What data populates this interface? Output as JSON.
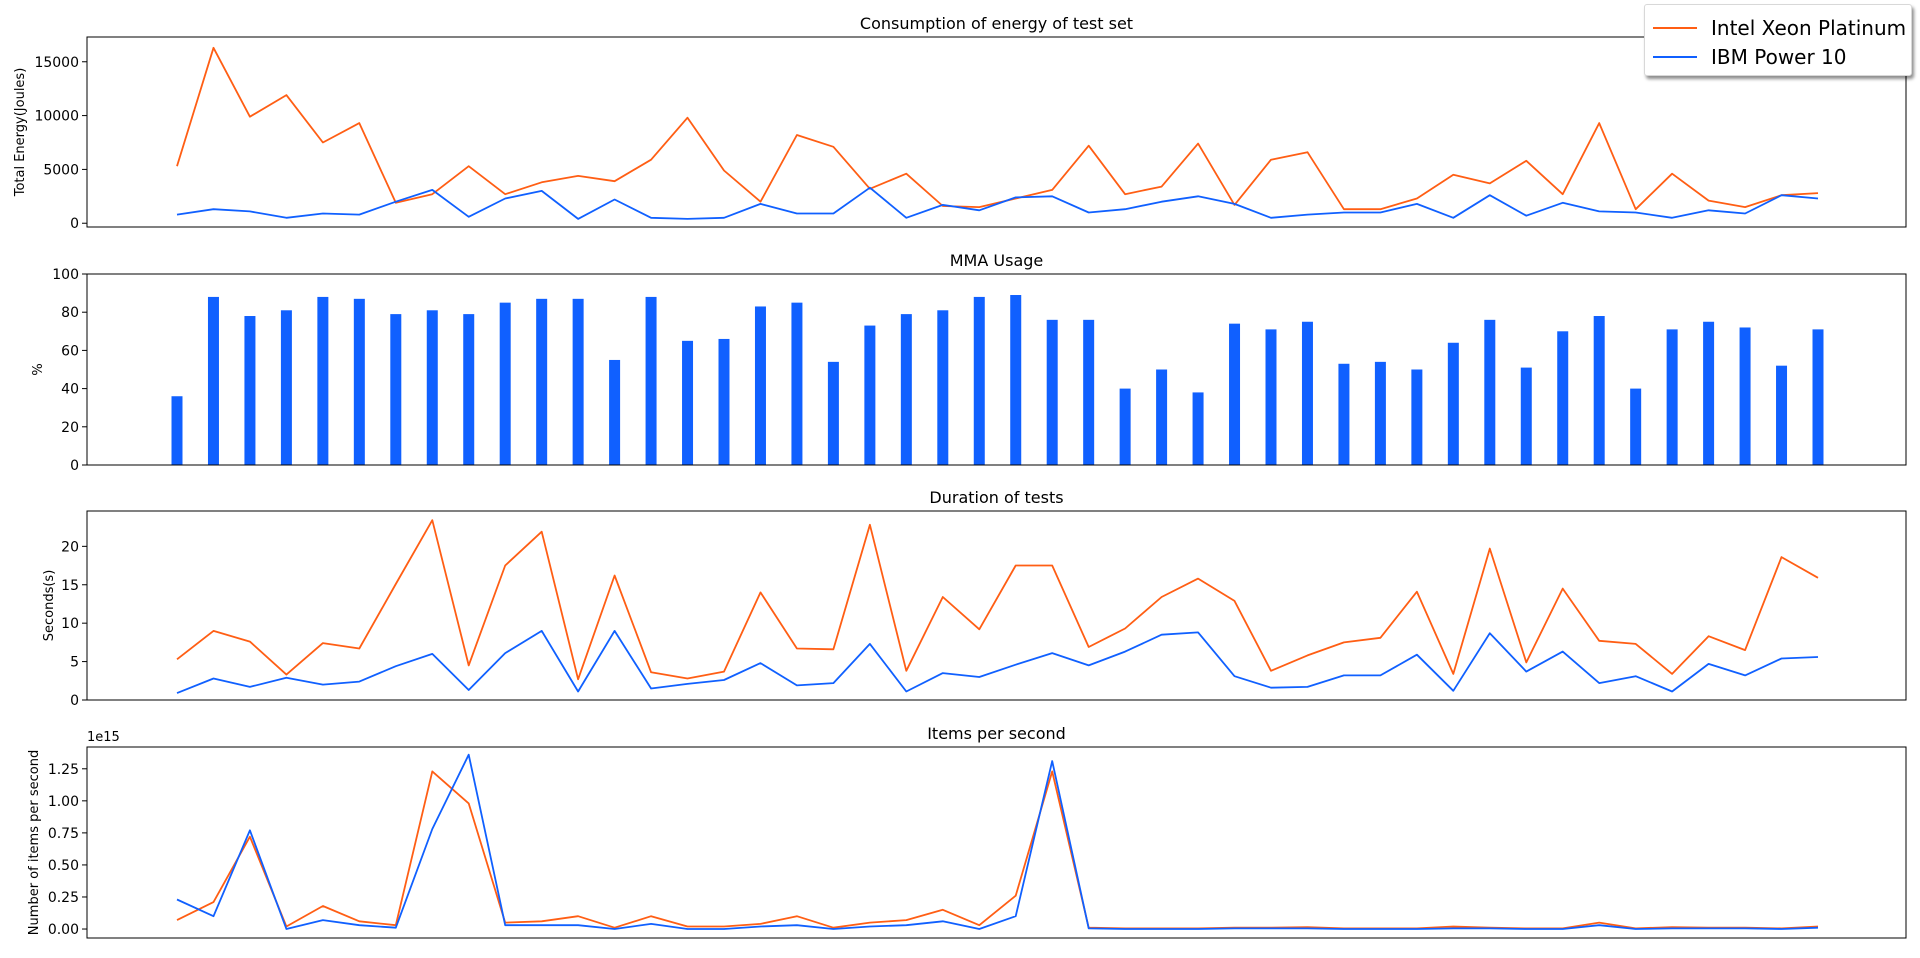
{
  "colors": {
    "intel": "#ff5e14",
    "ibm": "#1060ff",
    "bar": "#1060ff",
    "axis": "#000000"
  },
  "legend": {
    "placement": "top-right",
    "items": [
      {
        "label": "Intel Xeon Platinum",
        "color": "#ff5e14"
      },
      {
        "label": "IBM Power 10",
        "color": "#1060ff"
      }
    ]
  },
  "chart_data": [
    {
      "type": "line",
      "title": "Consumption of energy of test set",
      "xlabel": "",
      "ylabel": "Total Energy(Joules)",
      "ylim": [
        -350,
        17300
      ],
      "yticks": [
        0,
        5000,
        10000,
        15000
      ],
      "ytick_labels": [
        "0",
        "5000",
        "10000",
        "15000"
      ],
      "series": [
        {
          "name": "Intel Xeon Platinum",
          "color": "#ff5e14",
          "values": [
            5300,
            16300,
            9900,
            11900,
            7500,
            9300,
            1900,
            2700,
            5300,
            2700,
            3800,
            4400,
            3900,
            5900,
            9800,
            4900,
            2000,
            8200,
            7100,
            3200,
            4600,
            1600,
            1500,
            2300,
            3100,
            7200,
            2700,
            3400,
            7400,
            1700,
            5900,
            6600,
            1300,
            1300,
            2300,
            4500,
            3700,
            5800,
            2700,
            9300,
            1300,
            4600,
            2100,
            1500,
            2600,
            2800
          ]
        },
        {
          "name": "IBM Power 10",
          "color": "#1060ff",
          "values": [
            800,
            1300,
            1100,
            500,
            900,
            800,
            2000,
            3100,
            600,
            2300,
            3000,
            400,
            2200,
            500,
            400,
            500,
            1800,
            900,
            900,
            3300,
            500,
            1700,
            1200,
            2400,
            2500,
            1000,
            1300,
            2000,
            2500,
            1800,
            500,
            800,
            1000,
            1000,
            1800,
            500,
            2600,
            700,
            1900,
            1100,
            1000,
            500,
            1200,
            900,
            2600,
            2300
          ]
        }
      ]
    },
    {
      "type": "bar",
      "title": "MMA Usage",
      "xlabel": "",
      "ylabel": "%",
      "ylim": [
        0,
        100
      ],
      "yticks": [
        0,
        20,
        40,
        60,
        80,
        100
      ],
      "ytick_labels": [
        "0",
        "20",
        "40",
        "60",
        "80",
        "100"
      ],
      "color": "#1060ff",
      "values": [
        36,
        88,
        78,
        81,
        88,
        87,
        79,
        81,
        79,
        85,
        87,
        87,
        55,
        88,
        65,
        66,
        83,
        85,
        54,
        73,
        79,
        81,
        88,
        89,
        76,
        76,
        40,
        50,
        38,
        74,
        71,
        75,
        53,
        54,
        50,
        64,
        76,
        51,
        70,
        78,
        40,
        71,
        75,
        72,
        52,
        71
      ]
    },
    {
      "type": "line",
      "title": "Duration of tests",
      "xlabel": "",
      "ylabel": "Seconds(s)",
      "ylim": [
        0,
        24.6
      ],
      "yticks": [
        0,
        5,
        10,
        15,
        20
      ],
      "ytick_labels": [
        "0",
        "5",
        "10",
        "15",
        "20"
      ],
      "series": [
        {
          "name": "Intel Xeon Platinum",
          "color": "#ff5e14",
          "values": [
            5.3,
            9,
            7.6,
            3.3,
            7.4,
            6.7,
            15.1,
            23.4,
            4.5,
            17.5,
            21.9,
            2.7,
            16.2,
            3.6,
            2.8,
            3.7,
            14,
            6.7,
            6.6,
            22.8,
            3.8,
            13.4,
            9.2,
            17.5,
            17.5,
            6.9,
            9.3,
            13.4,
            15.8,
            12.9,
            3.8,
            5.8,
            7.5,
            8.1,
            14.1,
            3.4,
            19.7,
            4.9,
            14.5,
            7.7,
            7.3,
            3.4,
            8.3,
            6.5,
            18.6,
            15.9
          ]
        },
        {
          "name": "IBM Power 10",
          "color": "#1060ff",
          "values": [
            0.9,
            2.8,
            1.7,
            2.9,
            2,
            2.4,
            4.4,
            6,
            1.3,
            6.1,
            9,
            1.1,
            9,
            1.5,
            2.1,
            2.6,
            4.8,
            1.9,
            2.2,
            7.3,
            1.1,
            3.5,
            3,
            4.6,
            6.1,
            4.5,
            6.3,
            8.5,
            8.8,
            3.1,
            1.6,
            1.7,
            3.2,
            3.2,
            5.9,
            1.2,
            8.7,
            3.7,
            6.3,
            2.2,
            3.1,
            1.1,
            4.7,
            3.2,
            5.4,
            5.6
          ]
        }
      ]
    },
    {
      "type": "line",
      "title": "Items per second",
      "xlabel": "",
      "ylabel": "Number of items per second",
      "offset_label": "1e15",
      "ylim": [
        -0.07,
        1.42
      ],
      "yticks": [
        0,
        0.25,
        0.5,
        0.75,
        1.0,
        1.25
      ],
      "ytick_labels": [
        "0.00",
        "0.25",
        "0.50",
        "0.75",
        "1.00",
        "1.25"
      ],
      "series": [
        {
          "name": "Intel Xeon Platinum",
          "color": "#ff5e14",
          "values": [
            0.07,
            0.21,
            0.72,
            0.02,
            0.18,
            0.06,
            0.03,
            1.23,
            0.98,
            0.05,
            0.06,
            0.1,
            0.01,
            0.1,
            0.02,
            0.02,
            0.04,
            0.1,
            0.01,
            0.05,
            0.07,
            0.15,
            0.03,
            0.26,
            1.23,
            0.01,
            0.005,
            0.005,
            0.005,
            0.01,
            0.01,
            0.015,
            0.005,
            0.005,
            0.005,
            0.02,
            0.01,
            0.005,
            0.005,
            0.05,
            0.005,
            0.015,
            0.01,
            0.01,
            0.005,
            0.02
          ]
        },
        {
          "name": "IBM Power 10",
          "color": "#1060ff",
          "values": [
            0.23,
            0.1,
            0.77,
            0.0,
            0.07,
            0.03,
            0.01,
            0.78,
            1.36,
            0.03,
            0.03,
            0.03,
            0.0,
            0.04,
            0.0,
            0.0,
            0.02,
            0.03,
            0.0,
            0.02,
            0.03,
            0.06,
            0.0,
            0.1,
            1.31,
            0.005,
            0.0,
            0.0,
            0.0,
            0.005,
            0.005,
            0.005,
            0.0,
            0.0,
            0.0,
            0.005,
            0.005,
            0.0,
            0.0,
            0.03,
            0.0,
            0.005,
            0.005,
            0.005,
            0.0,
            0.01
          ]
        }
      ]
    }
  ]
}
